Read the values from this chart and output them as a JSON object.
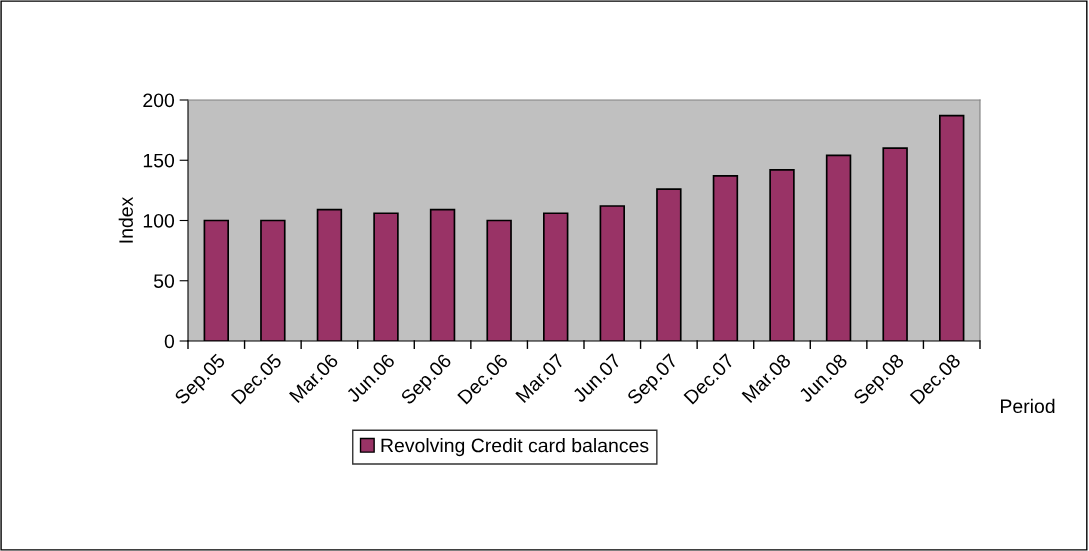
{
  "chart_data": {
    "type": "bar",
    "categories": [
      "Sep.05",
      "Dec.05",
      "Mar.06",
      "Jun.06",
      "Sep.06",
      "Dec.06",
      "Mar.07",
      "Jun.07",
      "Sep.07",
      "Dec.07",
      "Mar.08",
      "Jun.08",
      "Sep.08",
      "Dec.08"
    ],
    "series": [
      {
        "name": "Revolving Credit card balances",
        "color": "#993366",
        "values": [
          100,
          100,
          109,
          106,
          109,
          100,
          106,
          112,
          126,
          137,
          142,
          154,
          160,
          187
        ]
      }
    ],
    "ylim": [
      0,
      200
    ],
    "yticks": [
      0,
      50,
      100,
      150,
      200
    ],
    "xlabel": "Period",
    "ylabel": "Index",
    "grid": false,
    "legend": "bottom"
  }
}
